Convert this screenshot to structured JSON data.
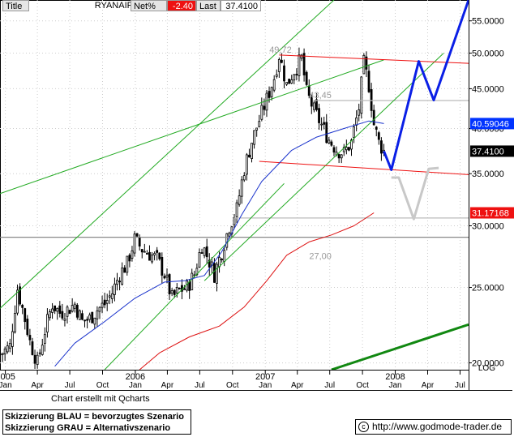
{
  "header": {
    "title_label": "Title",
    "instrument": "RYANAIR HLDGS PLC",
    "netpct_label": "Net%",
    "netpct_value": "-2.40",
    "last_label": "Last",
    "last_value": "37.4100"
  },
  "footer": {
    "credit": "Chart erstellt mit Qcharts",
    "legend_line1": "Skizzierung BLAU = bevorzugtes Szenario",
    "legend_line2": "Skizzierung GRAU = Alternativszenario",
    "copyright_symbol": "c",
    "url": "http://www.godmode-trader.de"
  },
  "chart_data": {
    "type": "candlestick",
    "y_scale": "log",
    "y_scale_label": "LOG",
    "ylim": [
      19.6,
      58.5
    ],
    "xlim": [
      "2004-12-17",
      "2008-07-25"
    ],
    "y_ticks": [
      {
        "value": 20,
        "label": "20.0000"
      },
      {
        "value": 25,
        "label": "25.0000"
      },
      {
        "value": 30,
        "label": "30.0000"
      },
      {
        "value": 35,
        "label": "35.0000"
      },
      {
        "value": 40,
        "label": "40.0000"
      },
      {
        "value": 45,
        "label": "45.0000"
      },
      {
        "value": 50,
        "label": "50.0000"
      },
      {
        "value": 55,
        "label": "55.0000"
      }
    ],
    "x_ticks": [
      {
        "date": "2005-01-01",
        "label": "Jan",
        "year": "2005"
      },
      {
        "date": "2005-04-01",
        "label": "Apr",
        "year": ""
      },
      {
        "date": "2005-07-01",
        "label": "Jul",
        "year": ""
      },
      {
        "date": "2005-10-01",
        "label": "Oct",
        "year": ""
      },
      {
        "date": "2006-01-01",
        "label": "Jan",
        "year": "2006"
      },
      {
        "date": "2006-04-01",
        "label": "Apr",
        "year": ""
      },
      {
        "date": "2006-07-01",
        "label": "Jul",
        "year": ""
      },
      {
        "date": "2006-10-01",
        "label": "Oct",
        "year": ""
      },
      {
        "date": "2007-01-01",
        "label": "Jan",
        "year": "2007"
      },
      {
        "date": "2007-04-01",
        "label": "Apr",
        "year": ""
      },
      {
        "date": "2007-07-01",
        "label": "Jul",
        "year": ""
      },
      {
        "date": "2007-10-01",
        "label": "Oct",
        "year": ""
      },
      {
        "date": "2008-01-01",
        "label": "Jan",
        "year": "2008"
      },
      {
        "date": "2008-04-01",
        "label": "Apr",
        "year": ""
      },
      {
        "date": "2008-07-01",
        "label": "Jul",
        "year": ""
      }
    ],
    "price_path": [
      [
        "2004-12-17",
        20.5
      ],
      [
        "2005-01-14",
        21.0
      ],
      [
        "2005-02-04",
        24.9
      ],
      [
        "2005-02-18",
        23.5
      ],
      [
        "2005-03-11",
        21.3
      ],
      [
        "2005-04-01",
        20.0
      ],
      [
        "2005-04-22",
        22.0
      ],
      [
        "2005-05-13",
        23.8
      ],
      [
        "2005-06-03",
        23.2
      ],
      [
        "2005-06-24",
        23.4
      ],
      [
        "2005-07-15",
        23.8
      ],
      [
        "2005-08-05",
        22.6
      ],
      [
        "2005-08-26",
        22.8
      ],
      [
        "2005-09-16",
        23.4
      ],
      [
        "2005-10-07",
        23.8
      ],
      [
        "2005-10-28",
        24.6
      ],
      [
        "2005-11-18",
        26.0
      ],
      [
        "2005-12-09",
        26.8
      ],
      [
        "2005-12-30",
        28.8
      ],
      [
        "2006-01-20",
        28.0
      ],
      [
        "2006-02-10",
        27.6
      ],
      [
        "2006-03-03",
        27.2
      ],
      [
        "2006-03-24",
        26.0
      ],
      [
        "2006-04-14",
        24.2
      ],
      [
        "2006-05-05",
        24.8
      ],
      [
        "2006-05-26",
        25.0
      ],
      [
        "2006-06-16",
        26.0
      ],
      [
        "2006-07-07",
        28.4
      ],
      [
        "2006-07-28",
        27.0
      ],
      [
        "2006-08-11",
        26.0
      ],
      [
        "2006-09-01",
        27.8
      ],
      [
        "2006-09-22",
        30.0
      ],
      [
        "2006-10-13",
        31.5
      ],
      [
        "2006-11-03",
        35.5
      ],
      [
        "2006-11-24",
        38.5
      ],
      [
        "2006-12-15",
        41.0
      ],
      [
        "2007-01-05",
        43.6
      ],
      [
        "2007-01-26",
        46.5
      ],
      [
        "2007-02-09",
        49.7
      ],
      [
        "2007-03-02",
        45.5
      ],
      [
        "2007-03-23",
        47.5
      ],
      [
        "2007-04-13",
        49.2
      ],
      [
        "2007-04-27",
        44.5
      ],
      [
        "2007-05-18",
        42.2
      ],
      [
        "2007-06-08",
        40.4
      ],
      [
        "2007-06-29",
        38.7
      ],
      [
        "2007-07-20",
        37.6
      ],
      [
        "2007-08-10",
        37.2
      ],
      [
        "2007-08-31",
        38.4
      ],
      [
        "2007-09-21",
        42.5
      ],
      [
        "2007-10-05",
        48.5
      ],
      [
        "2007-10-19",
        45.5
      ],
      [
        "2007-11-02",
        40.5
      ],
      [
        "2007-11-16",
        38.4
      ],
      [
        "2007-11-30",
        37.41
      ]
    ],
    "moving_average_blue": [
      [
        "2005-05-20",
        19.8
      ],
      [
        "2005-07-15",
        21.2
      ],
      [
        "2005-10-07",
        22.6
      ],
      [
        "2005-12-30",
        24.2
      ],
      [
        "2006-03-24",
        25.4
      ],
      [
        "2006-05-19",
        25.5
      ],
      [
        "2006-07-14",
        25.9
      ],
      [
        "2006-09-01",
        27.8
      ],
      [
        "2006-10-27",
        31.0
      ],
      [
        "2006-12-22",
        34.2
      ],
      [
        "2007-03-16",
        37.5
      ],
      [
        "2007-05-25",
        39.0
      ],
      [
        "2007-08-10",
        40.0
      ],
      [
        "2007-10-19",
        40.9
      ],
      [
        "2007-11-30",
        40.59
      ]
    ],
    "moving_average_red": [
      [
        "2006-01-13",
        19.6
      ],
      [
        "2006-03-10",
        20.6
      ],
      [
        "2006-06-02",
        21.6
      ],
      [
        "2006-08-25",
        22.3
      ],
      [
        "2006-11-03",
        23.6
      ],
      [
        "2007-01-05",
        25.5
      ],
      [
        "2007-03-02",
        27.5
      ],
      [
        "2007-05-04",
        28.6
      ],
      [
        "2007-07-06",
        29.2
      ],
      [
        "2007-09-07",
        30.0
      ],
      [
        "2007-11-02",
        31.17
      ]
    ],
    "price_markers": [
      {
        "value": 40.59046,
        "label": "40.59046",
        "color": "#0033ff"
      },
      {
        "value": 37.41,
        "label": "37.4100",
        "color": "#000000"
      },
      {
        "value": 31.17168,
        "label": "31.17168",
        "color": "#ee1111"
      }
    ],
    "annotations": [
      {
        "text": "49,72",
        "date": "2007-01-26",
        "value": 49.72
      },
      {
        "text": "43,45",
        "date": "2007-05-18",
        "value": 43.45
      },
      {
        "text": "27,00",
        "date": "2007-05-18",
        "value": 27.0
      }
    ],
    "horizontal_lines": [
      {
        "value": 29.0,
        "from": "2004-12-17",
        "color": "#888888"
      },
      {
        "value": 43.45,
        "from": "2007-05-18",
        "color": "#bbbbbb"
      },
      {
        "value": 30.7,
        "from": "2006-10-06",
        "color": "#bbbbbb"
      }
    ],
    "trend_lines": [
      {
        "color": "#22aa22",
        "from": [
          "2004-12-17",
          33.0
        ],
        "to": [
          "2007-11-30",
          49.0
        ]
      },
      {
        "color": "#22aa22",
        "from": [
          "2004-12-17",
          23.5
        ],
        "to": [
          "2007-07-13",
          58.5
        ]
      },
      {
        "color": "#22aa22",
        "from": [
          "2006-07-14",
          25.5
        ],
        "to": [
          "2008-05-16",
          50.0
        ]
      },
      {
        "color": "#22aa22",
        "from": [
          "2005-10-07",
          19.6
        ],
        "to": [
          "2007-02-23",
          34.0
        ]
      },
      {
        "color": "#ee1111",
        "from": [
          "2007-02-09",
          49.72
        ],
        "to": [
          "2008-07-25",
          48.5
        ]
      },
      {
        "color": "#ee1111",
        "from": [
          "2006-12-15",
          36.3
        ],
        "to": [
          "2008-07-25",
          34.9
        ]
      }
    ],
    "long_trend_line": {
      "color": "#118811",
      "from": [
        "2007-07-06",
        19.6
      ],
      "to": [
        "2008-07-25",
        22.4
      ]
    },
    "scenario_blue": [
      [
        "2007-11-30",
        37.41
      ],
      [
        "2007-12-21",
        35.4
      ],
      [
        "2008-03-07",
        48.8
      ],
      [
        "2008-04-18",
        43.5
      ],
      [
        "2008-07-25",
        58.5
      ]
    ],
    "scenario_gray": [
      [
        "2007-12-21",
        34.6
      ],
      [
        "2008-01-11",
        34.6
      ],
      [
        "2008-02-22",
        30.6
      ],
      [
        "2008-04-04",
        35.5
      ],
      [
        "2008-05-02",
        35.6
      ]
    ]
  }
}
